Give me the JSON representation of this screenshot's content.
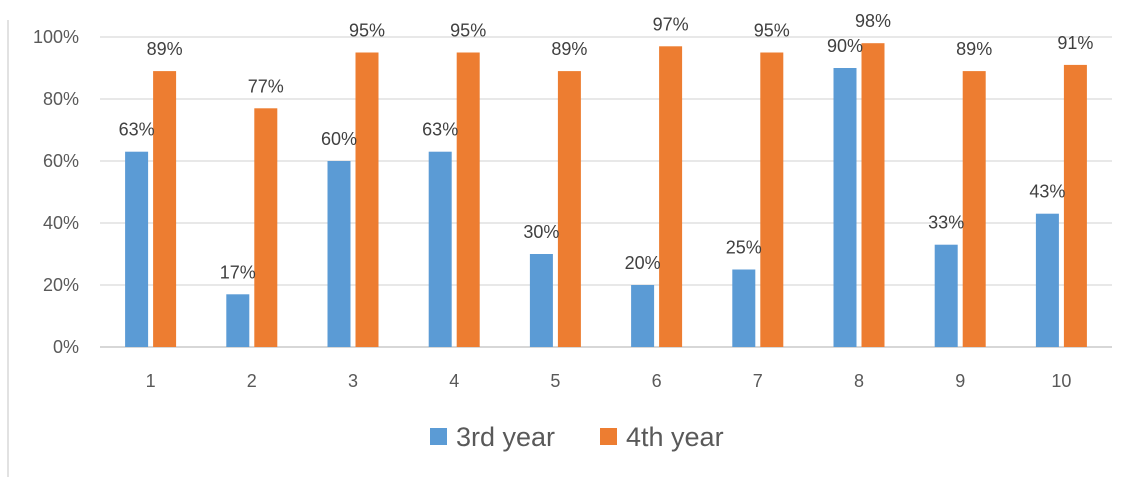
{
  "chart_data": {
    "type": "bar",
    "categories": [
      "1",
      "2",
      "3",
      "4",
      "5",
      "6",
      "7",
      "8",
      "9",
      "10"
    ],
    "series": [
      {
        "name": "3rd year",
        "color": "#5B9BD5",
        "values": [
          63,
          17,
          60,
          63,
          30,
          20,
          25,
          90,
          33,
          43
        ],
        "labels": [
          "63%",
          "17%",
          "60%",
          "63%",
          "30%",
          "20%",
          "25%",
          "90%",
          "33%",
          "43%"
        ]
      },
      {
        "name": "4th year",
        "color": "#ED7D31",
        "values": [
          89,
          77,
          95,
          95,
          89,
          97,
          95,
          98,
          89,
          91
        ],
        "labels": [
          "89%",
          "77%",
          "95%",
          "95%",
          "89%",
          "97%",
          "95%",
          "98%",
          "89%",
          "91%"
        ]
      }
    ],
    "y_ticks": [
      "0%",
      "20%",
      "40%",
      "60%",
      "80%",
      "100%"
    ],
    "ylim": [
      0,
      100
    ],
    "grid": true,
    "legend_position": "bottom",
    "title": "",
    "xlabel": "",
    "ylabel": ""
  }
}
